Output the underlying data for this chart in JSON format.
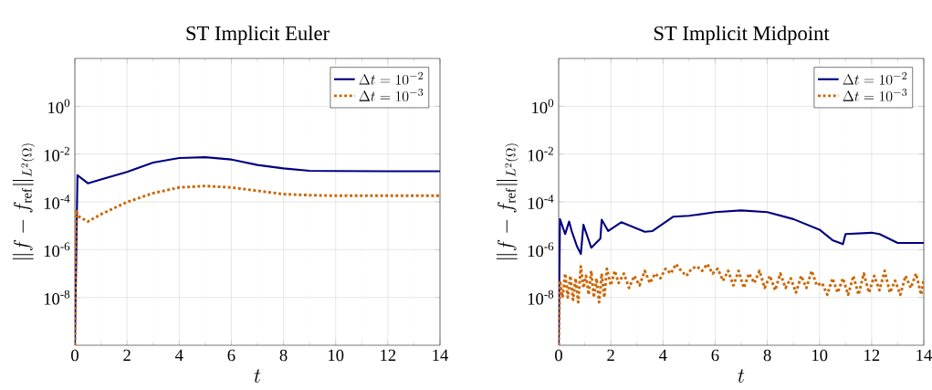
{
  "chart_data": [
    {
      "type": "line",
      "title": "ST Implicit Euler",
      "xlabel": "t",
      "ylabel": "\\|f - f_{\\mathrm{ref}}\\|_{L^2(\\Omega)}",
      "log": "y",
      "grid": true,
      "legend": "top right",
      "xlim": [
        0,
        14
      ],
      "ylim": [
        1e-10,
        100
      ],
      "xticks": [
        0,
        2,
        4,
        6,
        8,
        10,
        12,
        14
      ],
      "yticks": [
        {
          "value": 1e-08,
          "label": "10$^{-8}$"
        },
        {
          "value": 1e-06,
          "label": "10$^{-6}$"
        },
        {
          "value": 0.0001,
          "label": "10$^{-4}$"
        },
        {
          "value": 0.01,
          "label": "10$^{-2}$"
        },
        {
          "value": 1,
          "label": "10$^{0}$"
        }
      ],
      "series": [
        {
          "name": "\\Delta t = 10^{-2}",
          "color": "#000080",
          "line_style": "solid",
          "x": [
            0,
            0.1,
            0.5,
            1,
            2,
            3,
            4,
            5,
            6,
            7,
            8,
            9,
            10,
            12,
            14
          ],
          "values": [
            1e-10,
            0.0013,
            0.0006,
            0.00087,
            0.0018,
            0.0044,
            0.0068,
            0.0074,
            0.0059,
            0.0035,
            0.0025,
            0.002,
            0.00195,
            0.0019,
            0.0019
          ]
        },
        {
          "name": "\\Delta t = 10^{-3}",
          "color": "#cc6600",
          "line_style": "dotted",
          "x": [
            0,
            0.05,
            0.1,
            0.5,
            1,
            2,
            3,
            4,
            5,
            6,
            7,
            8,
            9,
            10,
            14
          ],
          "values": [
            1e-10,
            4.7e-05,
            2.6e-05,
            1.5e-05,
            3e-05,
            9.8e-05,
            0.00023,
            0.0004,
            0.00046,
            0.0004,
            0.00029,
            0.00021,
            0.00019,
            0.00018,
            0.00018
          ]
        }
      ]
    },
    {
      "type": "line",
      "title": "ST Implicit Midpoint",
      "xlabel": "t",
      "ylabel": "\\|f - f_{\\mathrm{ref}}\\|_{L^2(\\Omega)}",
      "log": "y",
      "grid": true,
      "legend": "top right",
      "xlim": [
        0,
        14
      ],
      "ylim": [
        1e-10,
        100
      ],
      "xticks": [
        0,
        2,
        4,
        6,
        8,
        10,
        12,
        14
      ],
      "yticks": [
        {
          "value": 1e-08,
          "label": "10$^{-8}$"
        },
        {
          "value": 1e-06,
          "label": "10$^{-6}$"
        },
        {
          "value": 0.0001,
          "label": "10$^{-4}$"
        },
        {
          "value": 0.01,
          "label": "10$^{-2}$"
        },
        {
          "value": 1,
          "label": "10$^{0}$"
        }
      ],
      "series": [
        {
          "name": "\\Delta t = 10^{-2}",
          "color": "#000080",
          "line_style": "solid",
          "x": [
            0,
            0.05,
            0.25,
            0.4,
            0.5,
            0.7,
            0.85,
            0.95,
            1.25,
            1.6,
            1.65,
            1.9,
            2.4,
            3.3,
            3.6,
            4.4,
            5,
            6,
            7,
            8,
            9,
            10,
            10.5,
            10.9,
            11,
            12,
            12.3,
            13,
            14
          ],
          "values": [
            1e-10,
            1.9e-05,
            4.5e-06,
            1.5e-05,
            6e-06,
            1.4e-06,
            6.6e-07,
            1.1e-05,
            1.2e-06,
            2.9e-06,
            1.8e-05,
            6e-06,
            1.4e-05,
            5.6e-06,
            6e-06,
            2.4e-05,
            2.6e-05,
            3.7e-05,
            4.4e-05,
            3.7e-05,
            1.9e-05,
            6.9e-06,
            2.5e-06,
            1.7e-06,
            4.5e-06,
            5.1e-06,
            4.5e-06,
            1.9e-06,
            1.9e-06
          ]
        },
        {
          "name": "\\Delta t = 10^{-3}",
          "color": "#cc6600",
          "line_style": "dotted",
          "x": [
            0,
            0.05,
            0.15,
            0.25,
            0.35,
            0.45,
            0.55,
            0.65,
            0.75,
            0.85,
            0.95,
            1.05,
            1.15,
            1.25,
            1.35,
            1.45,
            1.55,
            1.65,
            1.75,
            1.85,
            2.0,
            2.15,
            2.3,
            2.5,
            2.7,
            2.9,
            3.1,
            3.3,
            3.5,
            3.7,
            3.9,
            4.1,
            4.3,
            4.5,
            4.7,
            4.9,
            5.1,
            5.3,
            5.5,
            5.7,
            5.9,
            6.1,
            6.3,
            6.5,
            6.7,
            6.9,
            7.1,
            7.3,
            7.5,
            7.7,
            7.9,
            8.1,
            8.3,
            8.5,
            8.7,
            8.9,
            9.1,
            9.3,
            9.5,
            9.7,
            9.9,
            10.1,
            10.3,
            10.5,
            10.7,
            10.9,
            11.1,
            11.3,
            11.5,
            11.7,
            11.9,
            12.1,
            12.3,
            12.5,
            12.7,
            12.9,
            13.1,
            13.3,
            13.5,
            13.7,
            13.9,
            14
          ],
          "values": [
            1e-10,
            5e-08,
            1e-08,
            1e-07,
            1e-08,
            8e-08,
            8e-09,
            6.3e-08,
            6.3e-09,
            2e-07,
            2.5e-08,
            8e-08,
            1.3e-08,
            1.3e-07,
            1e-08,
            6.3e-08,
            6.3e-09,
            1e-07,
            1e-08,
            1.6e-07,
            3.2e-08,
            1.3e-07,
            4e-08,
            1e-07,
            2.5e-08,
            8e-08,
            3.2e-08,
            1.3e-07,
            4e-08,
            1e-07,
            6.3e-08,
            1.6e-07,
            1e-07,
            2.5e-07,
            1.3e-07,
            8e-08,
            1.6e-07,
            2e-07,
            1.3e-07,
            2.5e-07,
            1e-07,
            1.6e-07,
            5e-08,
            1.3e-07,
            3.2e-08,
            1.3e-07,
            2.5e-08,
            1e-07,
            4e-08,
            1.3e-07,
            2.5e-08,
            8e-08,
            2e-08,
            1e-07,
            2.5e-08,
            6.3e-08,
            1.6e-08,
            8e-08,
            2.5e-08,
            1.3e-07,
            3.2e-08,
            4e-08,
            1.3e-08,
            6.3e-08,
            1.6e-08,
            6.3e-08,
            1.3e-08,
            8e-08,
            1.3e-08,
            1e-07,
            1.6e-08,
            8e-08,
            2e-08,
            1.3e-07,
            1.6e-08,
            5e-08,
            1.3e-08,
            8e-08,
            2.5e-08,
            1e-07,
            1.3e-08,
            6.3e-08
          ]
        }
      ]
    }
  ]
}
